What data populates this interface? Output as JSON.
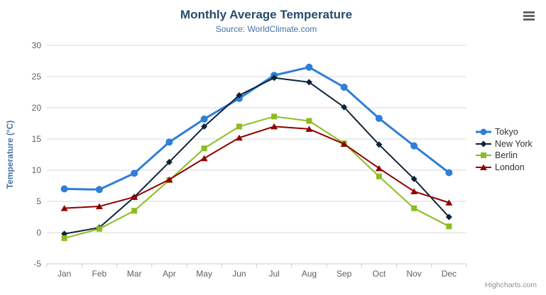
{
  "chart": {
    "title": "Monthly Average Temperature",
    "subtitle": "Source: WorldClimate.com",
    "y_axis_title": "Temperature (°C)",
    "credits": "Highcharts.com",
    "menu_icon": "hamburger-icon",
    "colors": {
      "title_text": "#274b6d",
      "subtitle_text": "#4572a7",
      "axis_title_text": "#4572a7",
      "axis_label_text": "#606060",
      "grid_line": "#d8d8d8",
      "axis_line": "#c0d0e0",
      "legend_text": "#333333",
      "credits_text": "#909090",
      "menu_icon": "#666666",
      "background": "#ffffff"
    }
  },
  "chart_data": {
    "type": "line",
    "title": "Monthly Average Temperature",
    "subtitle": "Source: WorldClimate.com",
    "categories": [
      "Jan",
      "Feb",
      "Mar",
      "Apr",
      "May",
      "Jun",
      "Jul",
      "Aug",
      "Sep",
      "Oct",
      "Nov",
      "Dec"
    ],
    "xlabel": "",
    "ylabel": "Temperature (°C)",
    "ylim": [
      -5,
      30
    ],
    "ytick_interval": 5,
    "grid": true,
    "legend_position": "right",
    "series": [
      {
        "name": "Tokyo",
        "color": "#2f7ed8",
        "marker": "circle",
        "line_width": 3,
        "values": [
          7.0,
          6.9,
          9.5,
          14.5,
          18.2,
          21.5,
          25.2,
          26.5,
          23.3,
          18.3,
          13.9,
          9.6
        ]
      },
      {
        "name": "New York",
        "color": "#0d233a",
        "marker": "diamond",
        "line_width": 2,
        "values": [
          -0.2,
          0.8,
          5.7,
          11.3,
          17.0,
          22.0,
          24.8,
          24.1,
          20.1,
          14.1,
          8.6,
          2.5
        ]
      },
      {
        "name": "Berlin",
        "color": "#8bbc21",
        "marker": "square",
        "line_width": 2,
        "values": [
          -0.9,
          0.6,
          3.5,
          8.4,
          13.5,
          17.0,
          18.6,
          17.9,
          14.3,
          9.0,
          3.9,
          1.0
        ]
      },
      {
        "name": "London",
        "color": "#910000",
        "marker": "triangle",
        "line_width": 2,
        "values": [
          3.9,
          4.2,
          5.7,
          8.5,
          11.9,
          15.2,
          17.0,
          16.6,
          14.2,
          10.3,
          6.6,
          4.8
        ]
      }
    ]
  }
}
